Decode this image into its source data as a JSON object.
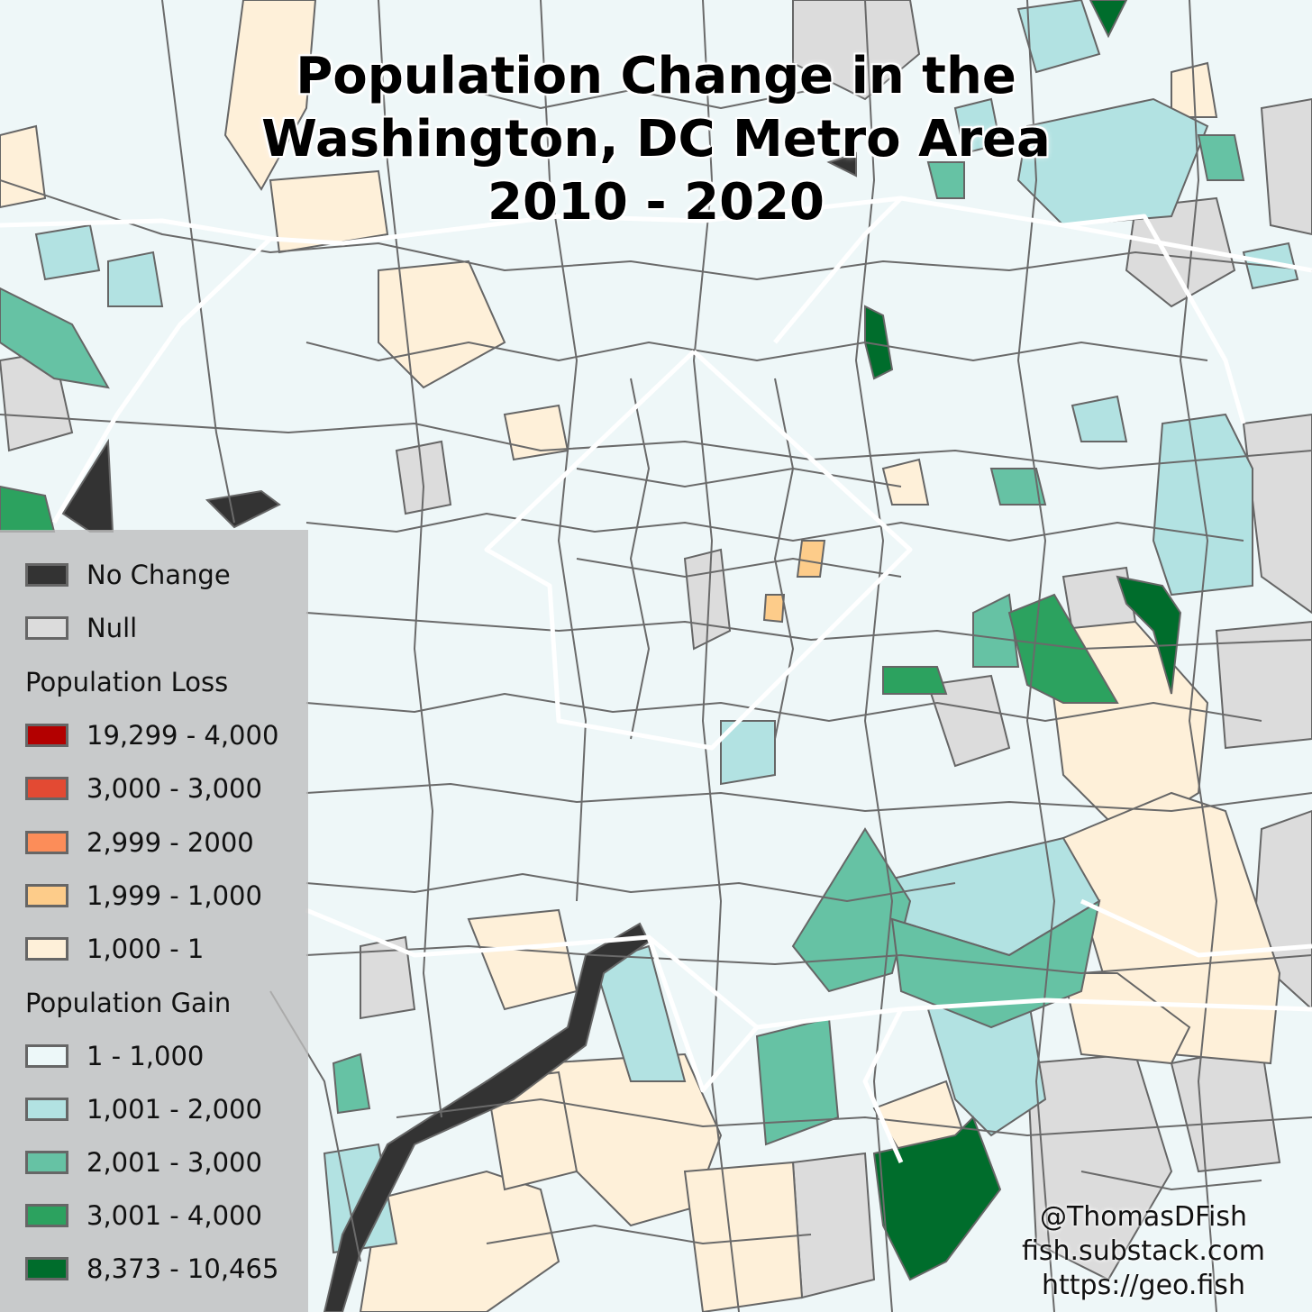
{
  "map": {
    "title_lines": [
      "Population Change in the",
      "Washington, DC Metro Area",
      "2010 - 2020"
    ]
  },
  "legend": {
    "no_change": {
      "label": "No Change",
      "color": "#333333"
    },
    "null": {
      "label": "Null",
      "color": "#dcdcdc"
    },
    "loss_heading": "Population Loss",
    "loss": [
      {
        "label": "19,299 - 4,000",
        "color": "#b30000"
      },
      {
        "label": "3,000 - 3,000",
        "color": "#e34a33"
      },
      {
        "label": "2,999 - 2000",
        "color": "#fc8d59"
      },
      {
        "label": "1,999 - 1,000",
        "color": "#fdcc8a"
      },
      {
        "label": "1,000 - 1",
        "color": "#fef0d9"
      }
    ],
    "gain_heading": "Population Gain",
    "gain": [
      {
        "label": "1 - 1,000",
        "color": "#edf8f9"
      },
      {
        "label": "1,001 - 2,000",
        "color": "#b2e2e2"
      },
      {
        "label": "2,001 - 3,000",
        "color": "#66c2a4"
      },
      {
        "label": "3,001 - 4,000",
        "color": "#2ca25f"
      },
      {
        "label": "8,373 - 10,465",
        "color": "#006d2c"
      }
    ]
  },
  "credits": [
    "@ThomasDFish",
    "fish.substack.com",
    "https://geo.fish"
  ],
  "colors": {
    "gain_low": "#edf8f9",
    "gain_2": "#b2e2e2",
    "gain_3": "#66c2a4",
    "gain_4": "#2ca25f",
    "gain_5": "#006d2c",
    "loss_low": "#fef0d9",
    "loss_mid": "#fdcc8a",
    "loss_orange": "#fc8d59",
    "null": "#dcdcdc",
    "no_change": "#333333",
    "tract_border": "#666666",
    "county_border": "#ffffff"
  }
}
